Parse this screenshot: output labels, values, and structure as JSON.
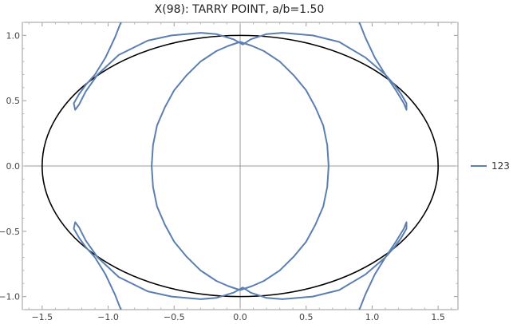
{
  "chart_data": {
    "type": "line",
    "title": "X(98): TARRY POINT, a/b=1.50",
    "xlabel": "",
    "ylabel": "",
    "xlim": [
      -1.65,
      1.65
    ],
    "ylim": [
      -1.1,
      1.1
    ],
    "grid": false,
    "legend_position": "right",
    "xticks": [
      -1.5,
      -1.0,
      -0.5,
      0.0,
      0.5,
      1.0,
      1.5
    ],
    "yticks": [
      -1.0,
      -0.5,
      0.0,
      0.5,
      1.0
    ],
    "xtick_labels": [
      "−1.5",
      "−1.0",
      "−0.5",
      "0.0",
      "0.5",
      "1.0",
      "1.5"
    ],
    "ytick_labels": [
      "−1.0",
      "−0.5",
      "0.0",
      "0.5",
      "1.0"
    ],
    "ellipse": {
      "a": 1.5,
      "b": 1.0,
      "color": "#000000"
    },
    "series": [
      {
        "name": "123",
        "color": "#5b7fb0",
        "paths": [
          [
            [
              0.0,
              0.95
            ],
            [
              0.09,
              0.92
            ],
            [
              0.18,
              0.88
            ],
            [
              0.3,
              0.8
            ],
            [
              0.41,
              0.69
            ],
            [
              0.5,
              0.58
            ],
            [
              0.57,
              0.45
            ],
            [
              0.63,
              0.31
            ],
            [
              0.66,
              0.16
            ],
            [
              0.67,
              0.0
            ],
            [
              0.66,
              -0.16
            ],
            [
              0.63,
              -0.31
            ],
            [
              0.57,
              -0.45
            ],
            [
              0.5,
              -0.58
            ],
            [
              0.41,
              -0.69
            ],
            [
              0.3,
              -0.8
            ],
            [
              0.18,
              -0.88
            ],
            [
              0.09,
              -0.92
            ],
            [
              0.0,
              -0.95
            ],
            [
              -0.09,
              -0.92
            ],
            [
              -0.18,
              -0.88
            ],
            [
              -0.3,
              -0.8
            ],
            [
              -0.41,
              -0.69
            ],
            [
              -0.5,
              -0.58
            ],
            [
              -0.57,
              -0.45
            ],
            [
              -0.63,
              -0.31
            ],
            [
              -0.66,
              -0.16
            ],
            [
              -0.67,
              0.0
            ],
            [
              -0.66,
              0.16
            ],
            [
              -0.63,
              0.31
            ],
            [
              -0.57,
              0.45
            ],
            [
              -0.5,
              0.58
            ],
            [
              -0.41,
              0.69
            ],
            [
              -0.3,
              0.8
            ],
            [
              -0.18,
              0.88
            ],
            [
              -0.09,
              0.92
            ],
            [
              0.0,
              0.95
            ]
          ],
          [
            [
              -0.88,
              1.16
            ],
            [
              -0.95,
              0.98
            ],
            [
              -1.02,
              0.83
            ],
            [
              -1.1,
              0.7
            ],
            [
              -1.17,
              0.62
            ],
            [
              -1.22,
              0.55
            ],
            [
              -1.26,
              0.48
            ],
            [
              -1.25,
              0.43
            ],
            [
              -1.22,
              0.47
            ],
            [
              -1.17,
              0.57
            ],
            [
              -1.08,
              0.7
            ],
            [
              -0.92,
              0.85
            ],
            [
              -0.7,
              0.96
            ],
            [
              -0.52,
              1.0
            ],
            [
              -0.3,
              1.02
            ],
            [
              -0.18,
              1.01
            ],
            [
              -0.05,
              0.97
            ],
            [
              0.02,
              0.93
            ],
            [
              0.08,
              0.97
            ],
            [
              0.2,
              1.01
            ],
            [
              0.32,
              1.02
            ],
            [
              0.55,
              1.0
            ],
            [
              0.75,
              0.95
            ],
            [
              0.95,
              0.83
            ],
            [
              1.1,
              0.7
            ],
            [
              1.18,
              0.58
            ],
            [
              1.24,
              0.48
            ],
            [
              1.26,
              0.43
            ],
            [
              1.26,
              0.48
            ],
            [
              1.22,
              0.55
            ],
            [
              1.17,
              0.62
            ],
            [
              1.1,
              0.7
            ],
            [
              1.02,
              0.83
            ],
            [
              0.95,
              0.98
            ],
            [
              0.88,
              1.16
            ]
          ],
          [
            [
              -0.88,
              -1.16
            ],
            [
              -0.95,
              -0.98
            ],
            [
              -1.02,
              -0.83
            ],
            [
              -1.1,
              -0.7
            ],
            [
              -1.17,
              -0.62
            ],
            [
              -1.22,
              -0.55
            ],
            [
              -1.26,
              -0.48
            ],
            [
              -1.25,
              -0.43
            ],
            [
              -1.22,
              -0.47
            ],
            [
              -1.17,
              -0.57
            ],
            [
              -1.08,
              -0.7
            ],
            [
              -0.92,
              -0.85
            ],
            [
              -0.7,
              -0.96
            ],
            [
              -0.52,
              -1.0
            ],
            [
              -0.3,
              -1.02
            ],
            [
              -0.18,
              -1.01
            ],
            [
              -0.05,
              -0.97
            ],
            [
              0.02,
              -0.93
            ],
            [
              0.08,
              -0.97
            ],
            [
              0.2,
              -1.01
            ],
            [
              0.32,
              -1.02
            ],
            [
              0.55,
              -1.0
            ],
            [
              0.75,
              -0.95
            ],
            [
              0.95,
              -0.83
            ],
            [
              1.1,
              -0.7
            ],
            [
              1.18,
              -0.58
            ],
            [
              1.24,
              -0.48
            ],
            [
              1.26,
              -0.43
            ],
            [
              1.26,
              -0.48
            ],
            [
              1.22,
              -0.55
            ],
            [
              1.17,
              -0.62
            ],
            [
              1.1,
              -0.7
            ],
            [
              1.02,
              -0.83
            ],
            [
              0.95,
              -0.98
            ],
            [
              0.88,
              -1.16
            ]
          ]
        ]
      }
    ]
  }
}
